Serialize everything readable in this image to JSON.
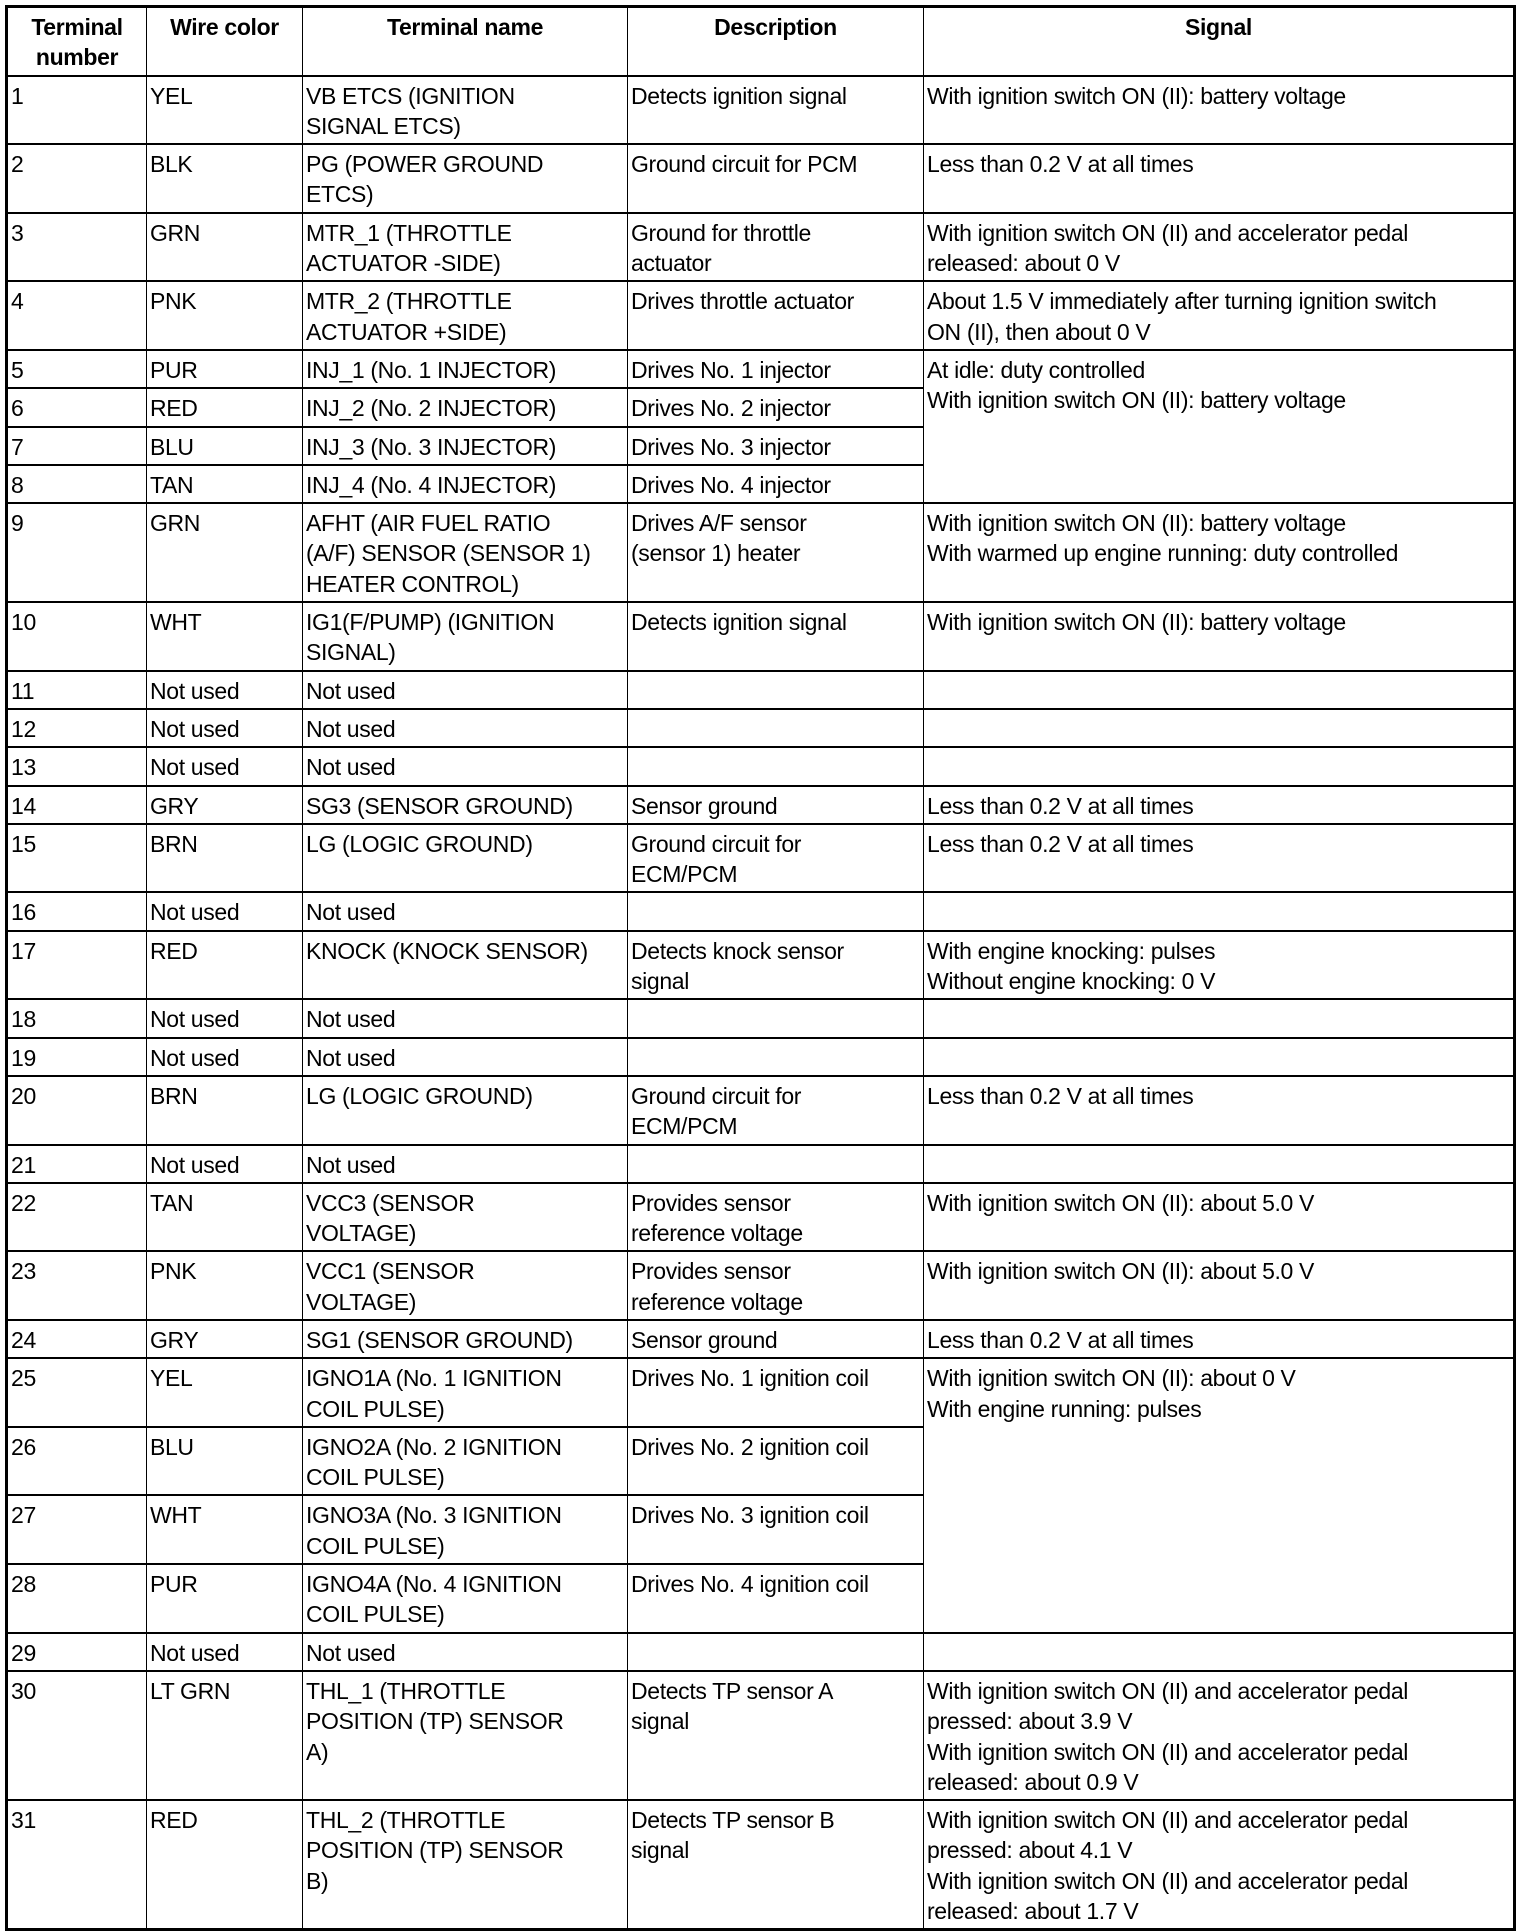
{
  "headers": [
    "Terminal\nnumber",
    "Wire color",
    "Terminal name",
    "Description",
    "Signal"
  ],
  "rows": [
    {
      "num": "1",
      "wire": "YEL",
      "name": "VB ETCS (IGNITION\nSIGNAL ETCS)",
      "desc": "Detects ignition signal",
      "signal": "With ignition switch ON (II): battery voltage"
    },
    {
      "num": "2",
      "wire": "BLK",
      "name": "PG (POWER GROUND\nETCS)",
      "desc": "Ground circuit for PCM",
      "signal": "Less than 0.2 V at all times"
    },
    {
      "num": "3",
      "wire": "GRN",
      "name": "MTR_1 (THROTTLE\nACTUATOR -SIDE)",
      "desc": "Ground for throttle\nactuator",
      "signal": "With ignition switch ON (II) and accelerator pedal\nreleased: about 0 V"
    },
    {
      "num": "4",
      "wire": "PNK",
      "name": "MTR_2 (THROTTLE\nACTUATOR +SIDE)",
      "desc": "Drives throttle actuator",
      "signal": "About 1.5 V immediately after turning ignition switch\nON (II), then about 0 V"
    },
    {
      "num": "5",
      "wire": "PUR",
      "name": "INJ_1 (No. 1 INJECTOR)",
      "desc": "Drives No. 1 injector",
      "signal": "At idle: duty controlled\nWith ignition switch ON (II): battery voltage",
      "span": 4
    },
    {
      "num": "6",
      "wire": "RED",
      "name": "INJ_2 (No. 2 INJECTOR)",
      "desc": "Drives No. 2 injector"
    },
    {
      "num": "7",
      "wire": "BLU",
      "name": "INJ_3 (No. 3 INJECTOR)",
      "desc": "Drives No. 3 injector"
    },
    {
      "num": "8",
      "wire": "TAN",
      "name": "INJ_4 (No. 4 INJECTOR)",
      "desc": "Drives No. 4 injector"
    },
    {
      "num": "9",
      "wire": "GRN",
      "name": "AFHT (AIR FUEL RATIO\n(A/F) SENSOR (SENSOR 1)\nHEATER CONTROL)",
      "desc": "Drives A/F sensor\n(sensor 1) heater",
      "signal": "With ignition switch ON (II): battery voltage\nWith warmed up engine running: duty controlled"
    },
    {
      "num": "10",
      "wire": "WHT",
      "name": "IG1(F/PUMP) (IGNITION\nSIGNAL)",
      "desc": "Detects ignition signal",
      "signal": "With ignition switch ON (II): battery voltage"
    },
    {
      "num": "11",
      "wire": "Not used",
      "name": "Not used",
      "desc": "",
      "signal": ""
    },
    {
      "num": "12",
      "wire": "Not used",
      "name": "Not used",
      "desc": "",
      "signal": ""
    },
    {
      "num": "13",
      "wire": "Not used",
      "name": "Not used",
      "desc": "",
      "signal": ""
    },
    {
      "num": "14",
      "wire": "GRY",
      "name": "SG3 (SENSOR GROUND)",
      "desc": "Sensor ground",
      "signal": "Less than 0.2 V at all times"
    },
    {
      "num": "15",
      "wire": "BRN",
      "name": "LG (LOGIC GROUND)",
      "desc": "Ground circuit for\nECM/PCM",
      "signal": "Less than 0.2 V at all times"
    },
    {
      "num": "16",
      "wire": "Not used",
      "name": "Not used",
      "desc": "",
      "signal": ""
    },
    {
      "num": "17",
      "wire": "RED",
      "name": "KNOCK (KNOCK SENSOR)",
      "desc": "Detects knock sensor\nsignal",
      "signal": "With engine knocking: pulses\nWithout engine knocking: 0 V"
    },
    {
      "num": "18",
      "wire": "Not used",
      "name": "Not used",
      "desc": "",
      "signal": ""
    },
    {
      "num": "19",
      "wire": "Not used",
      "name": "Not used",
      "desc": "",
      "signal": ""
    },
    {
      "num": "20",
      "wire": "BRN",
      "name": "LG (LOGIC GROUND)",
      "desc": "Ground circuit for\nECM/PCM",
      "signal": "Less than 0.2 V at all times"
    },
    {
      "num": "21",
      "wire": "Not used",
      "name": "Not used",
      "desc": "",
      "signal": ""
    },
    {
      "num": "22",
      "wire": "TAN",
      "name": "VCC3 (SENSOR\nVOLTAGE)",
      "desc": "Provides sensor\nreference voltage",
      "signal": "With ignition switch ON (II): about 5.0 V"
    },
    {
      "num": "23",
      "wire": "PNK",
      "name": "VCC1 (SENSOR\nVOLTAGE)",
      "desc": "Provides sensor\nreference voltage",
      "signal": "With ignition switch ON (II): about 5.0 V"
    },
    {
      "num": "24",
      "wire": "GRY",
      "name": "SG1 (SENSOR GROUND)",
      "desc": "Sensor ground",
      "signal": "Less than 0.2 V at all times"
    },
    {
      "num": "25",
      "wire": "YEL",
      "name": "IGNO1A (No. 1 IGNITION\nCOIL PULSE)",
      "desc": "Drives No. 1 ignition coil",
      "signal": "With ignition switch ON (II): about 0 V\nWith engine running: pulses",
      "span": 4
    },
    {
      "num": "26",
      "wire": "BLU",
      "name": "IGNO2A (No. 2 IGNITION\nCOIL PULSE)",
      "desc": "Drives No. 2 ignition coil"
    },
    {
      "num": "27",
      "wire": "WHT",
      "name": "IGNO3A (No. 3 IGNITION\nCOIL PULSE)",
      "desc": "Drives No. 3 ignition coil"
    },
    {
      "num": "28",
      "wire": "PUR",
      "name": "IGNO4A (No. 4 IGNITION\nCOIL PULSE)",
      "desc": "Drives No. 4 ignition coil"
    },
    {
      "num": "29",
      "wire": "Not used",
      "name": "Not used",
      "desc": "",
      "signal": ""
    },
    {
      "num": "30",
      "wire": "LT GRN",
      "name": "THL_1 (THROTTLE\nPOSITION (TP) SENSOR\nA)",
      "desc": "Detects TP sensor A\nsignal",
      "signal": "With ignition switch ON (II) and accelerator pedal\npressed: about 3.9 V\nWith ignition switch ON (II) and accelerator pedal\nreleased: about 0.9 V"
    },
    {
      "num": "31",
      "wire": "RED",
      "name": "THL_2 (THROTTLE\nPOSITION (TP) SENSOR\nB)",
      "desc": "Detects TP sensor B\nsignal",
      "signal": "With ignition switch ON (II) and accelerator pedal\npressed: about 4.1 V\nWith ignition switch ON (II) and accelerator pedal\nreleased: about 1.7 V"
    }
  ]
}
